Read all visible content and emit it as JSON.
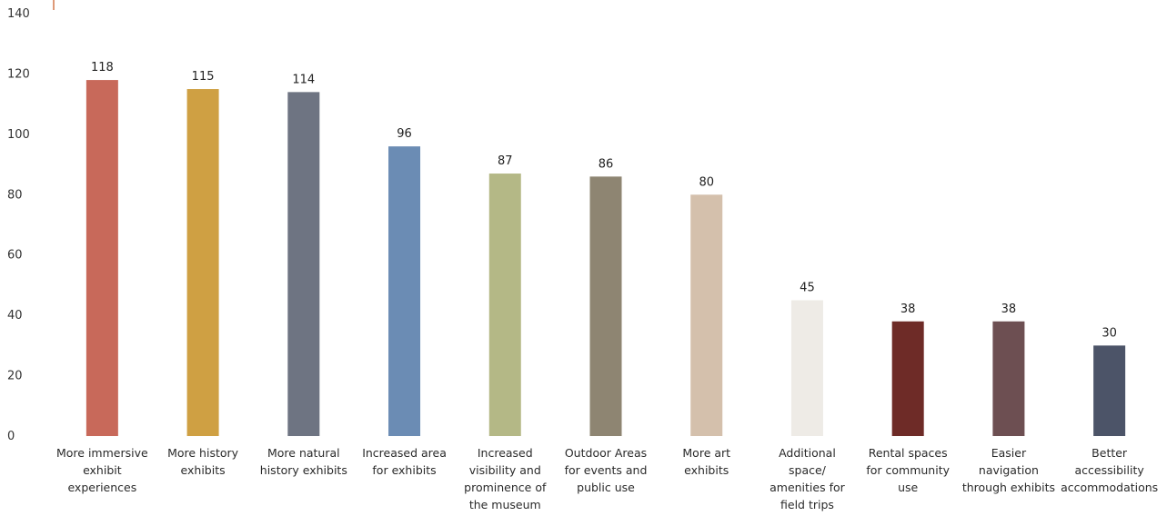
{
  "chart_data": {
    "type": "bar",
    "title": "",
    "xlabel": "",
    "ylabel": "",
    "ylim": [
      0,
      140
    ],
    "yticks": [
      0,
      20,
      40,
      60,
      80,
      100,
      120,
      140
    ],
    "grid": false,
    "legend": "none",
    "categories": [
      "More immersive exhibit experiences",
      "More history exhibits",
      "More natural history exhibits",
      "Increased area for exhibits",
      "Increased visibility and prominence of the museum",
      "Outdoor Areas for events and public use",
      "More art exhibits",
      "Additional space/ amenities for field trips",
      "Rental spaces for community use",
      "Easier navigation through exhibits",
      "Better accessibility accommodations"
    ],
    "category_lines": [
      [
        "More immersive",
        "exhibit",
        "experiences"
      ],
      [
        "More history",
        "exhibits"
      ],
      [
        "More natural",
        "history exhibits"
      ],
      [
        "Increased area",
        "for exhibits"
      ],
      [
        "Increased",
        "visibility and",
        "prominence of",
        "the museum"
      ],
      [
        "Outdoor Areas",
        "for events and",
        "public use"
      ],
      [
        "More art",
        "exhibits"
      ],
      [
        "Additional",
        "space/",
        "amenities for",
        "field trips"
      ],
      [
        "Rental spaces",
        "for community",
        "use"
      ],
      [
        "Easier",
        "navigation",
        "through exhibits"
      ],
      [
        "Better",
        "accessibility",
        "accommodations"
      ]
    ],
    "values": [
      118,
      115,
      114,
      96,
      87,
      86,
      80,
      45,
      38,
      38,
      30
    ],
    "colors": [
      "#c8695a",
      "#cfa043",
      "#6e7482",
      "#6b8cb4",
      "#b4b886",
      "#8e8572",
      "#d4c0ac",
      "#eeebe6",
      "#6e2b27",
      "#6d4f52",
      "#4c5468"
    ],
    "axis_accent_color": "#d2794a"
  }
}
